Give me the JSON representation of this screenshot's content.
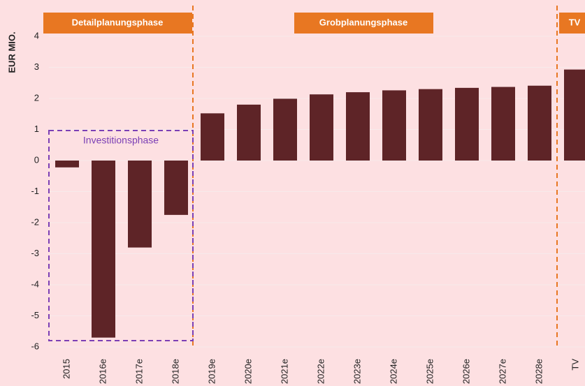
{
  "chart_data": {
    "type": "bar",
    "y_axis_label": "EUR MIO.",
    "categories": [
      "2015",
      "2016e",
      "2017e",
      "2018e",
      "2019e",
      "2020e",
      "2021e",
      "2022e",
      "2023e",
      "2024e",
      "2025e",
      "2026e",
      "2027e",
      "2028e",
      "TV"
    ],
    "values": [
      -0.22,
      -5.7,
      -2.8,
      -1.75,
      1.52,
      1.8,
      1.99,
      2.13,
      2.2,
      2.26,
      2.3,
      2.34,
      2.37,
      2.41,
      2.93
    ],
    "color": "#5e2427",
    "ylim": [
      -6,
      4
    ],
    "yticks": [
      -6,
      -5,
      -4,
      -3,
      -2,
      -1,
      0,
      1,
      2,
      3,
      4
    ],
    "grid": true,
    "annotations": [
      "Detailplanungsphase",
      "Grobplanungsphase",
      "TV",
      "Investitionsphase"
    ]
  }
}
